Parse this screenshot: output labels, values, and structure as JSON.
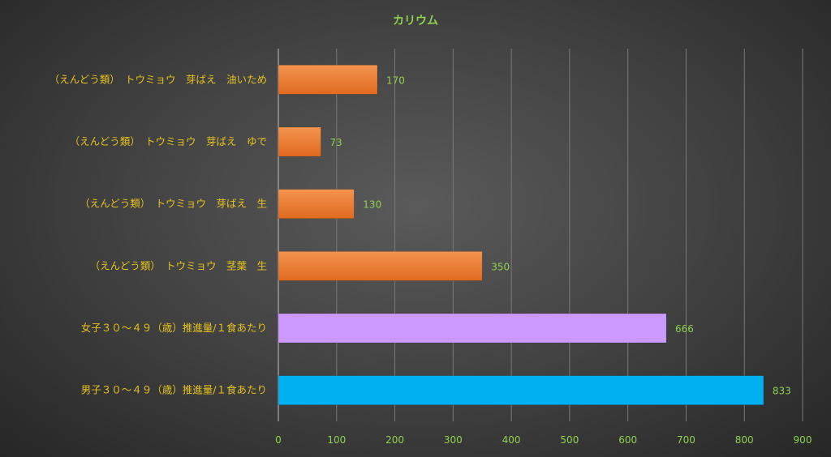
{
  "chart_data": {
    "type": "bar",
    "orientation": "horizontal",
    "title": "カリウム",
    "categories": [
      "（えんどう類）　トウミョウ　芽ばえ　油いため",
      "（えんどう類）　トウミョウ　芽ばえ　ゆで",
      "（えんどう類）　トウミョウ　芽ばえ　生",
      "（えんどう類）　トウミョウ　茎葉　生",
      "女子３０～４９（歳）推進量/１食あたり",
      "男子３０～４９（歳）推進量/１食あたり"
    ],
    "values": [
      170,
      73,
      130,
      350,
      666,
      833
    ],
    "bar_colors": [
      "#ed7d31",
      "#ed7d31",
      "#ed7d31",
      "#ed7d31",
      "#cc99ff",
      "#00b0f0"
    ],
    "xlim": [
      0,
      900
    ],
    "xticks": [
      0,
      100,
      200,
      300,
      400,
      500,
      600,
      700,
      800,
      900
    ],
    "grid": true,
    "data_labels": true
  }
}
